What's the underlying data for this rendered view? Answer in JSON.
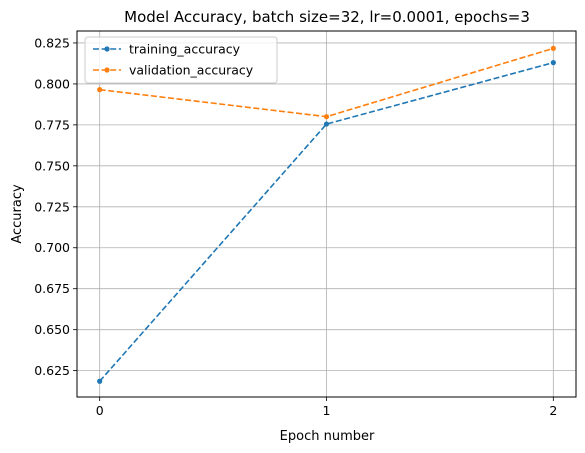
{
  "chart_data": {
    "type": "line",
    "title": "Model Accuracy, batch size=32, lr=0.0001, epochs=3",
    "xlabel": "Epoch number",
    "ylabel": "Accuracy",
    "x": [
      0,
      1,
      2
    ],
    "x_ticks": [
      "0",
      "1",
      "2"
    ],
    "y_ticks": [
      "0.625",
      "0.650",
      "0.675",
      "0.700",
      "0.725",
      "0.750",
      "0.775",
      "0.800",
      "0.825"
    ],
    "xlim": [
      -0.1,
      2.1
    ],
    "ylim": [
      0.6089,
      0.8323
    ],
    "grid": true,
    "legend_position": "upper-left",
    "series": [
      {
        "name": "training_accuracy",
        "values": [
          0.6185,
          0.7755,
          0.813
        ],
        "color": "#1f77b4",
        "linestyle": "dashed",
        "marker": "dot"
      },
      {
        "name": "validation_accuracy",
        "values": [
          0.7965,
          0.78,
          0.8217
        ],
        "color": "#ff7f0e",
        "linestyle": "dashed",
        "marker": "dot"
      }
    ]
  }
}
